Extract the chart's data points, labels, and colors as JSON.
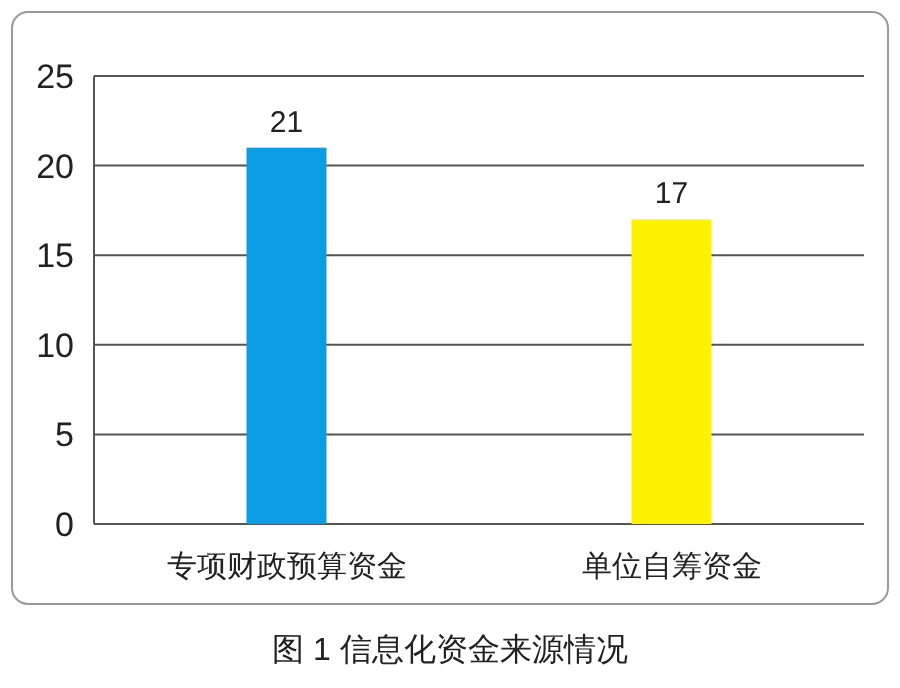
{
  "chart_data": {
    "type": "bar",
    "categories": [
      "专项财政预算资金",
      "单位自筹资金"
    ],
    "values": [
      21,
      17
    ],
    "colors": [
      "#0a9de2",
      "#fff200"
    ],
    "ylim": [
      0,
      25
    ],
    "yticks": [
      0,
      5,
      10,
      15,
      20,
      25
    ],
    "grid": "y",
    "data_labels": true,
    "annotations": [
      "图 1  信息化资金来源情况"
    ]
  }
}
